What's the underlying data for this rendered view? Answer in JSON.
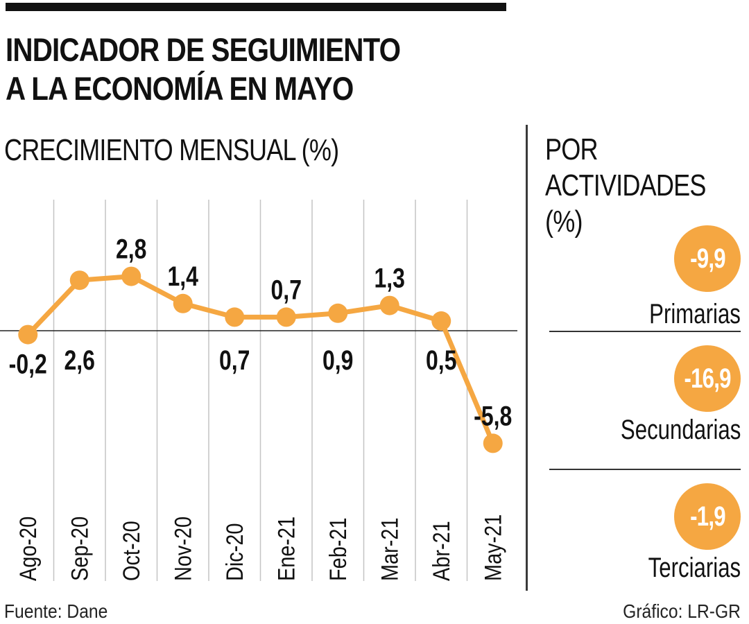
{
  "header": {
    "title_line1": "INDICADOR DE SEGUIMIENTO",
    "title_line2": "A LA ECONOMÍA EN MAYO",
    "subtitle": "CRECIMIENTO MENSUAL (%)"
  },
  "chart_data": {
    "type": "line",
    "title": "CRECIMIENTO MENSUAL (%)",
    "xlabel": "",
    "ylabel": "%",
    "categories": [
      "Ago-20",
      "Sep-20",
      "Oct-20",
      "Nov-20",
      "Dic-20",
      "Ene-21",
      "Feb-21",
      "Mar-21",
      "Abr-21",
      "May-21"
    ],
    "series": [
      {
        "name": "Crecimiento mensual",
        "values": [
          -0.2,
          2.6,
          2.8,
          1.4,
          0.7,
          0.7,
          0.9,
          1.3,
          0.5,
          -5.8
        ],
        "labels": [
          "-0,2",
          "2,6",
          "2,8",
          "1,4",
          "0,7",
          "0,7",
          "0,9",
          "1,3",
          "0,5",
          "-5,8"
        ],
        "label_position": [
          "below",
          "below",
          "above",
          "above",
          "below",
          "above",
          "below",
          "above",
          "below",
          "above"
        ],
        "color": "#F5A742"
      }
    ],
    "ylim": [
      -6,
      3
    ],
    "zero_line": true,
    "grid": "vertical separators between categories",
    "legend": "none"
  },
  "side_panel": {
    "title": "POR\nACTIVIDADES\n(%)",
    "activities": [
      {
        "name": "Primarias",
        "value": -9.9,
        "label": "-9,9"
      },
      {
        "name": "Secundarias",
        "value": -16.9,
        "label": "-16,9"
      },
      {
        "name": "Terciarias",
        "value": -1.9,
        "label": "-1,9"
      }
    ],
    "accent_color": "#F5A742"
  },
  "footer": {
    "source": "Fuente: Dane",
    "credit": "Gráfico: LR-GR"
  }
}
